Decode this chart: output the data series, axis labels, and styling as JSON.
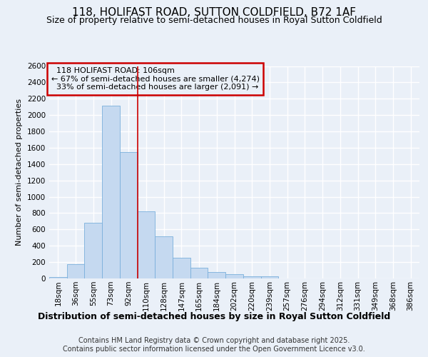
{
  "title1": "118, HOLIFAST ROAD, SUTTON COLDFIELD, B72 1AF",
  "title2": "Size of property relative to semi-detached houses in Royal Sutton Coldfield",
  "xlabel": "Distribution of semi-detached houses by size in Royal Sutton Coldfield",
  "ylabel": "Number of semi-detached properties",
  "footer": "Contains HM Land Registry data © Crown copyright and database right 2025.\nContains public sector information licensed under the Open Government Licence v3.0.",
  "categories": [
    "18sqm",
    "36sqm",
    "55sqm",
    "73sqm",
    "92sqm",
    "110sqm",
    "128sqm",
    "147sqm",
    "165sqm",
    "184sqm",
    "202sqm",
    "220sqm",
    "239sqm",
    "257sqm",
    "276sqm",
    "294sqm",
    "312sqm",
    "331sqm",
    "349sqm",
    "368sqm",
    "386sqm"
  ],
  "values": [
    15,
    175,
    685,
    2115,
    1550,
    825,
    515,
    255,
    130,
    75,
    55,
    25,
    25,
    0,
    0,
    0,
    0,
    0,
    0,
    0,
    0
  ],
  "bar_color": "#c5d9f0",
  "bar_edge_color": "#7ab0dc",
  "property_label": "118 HOLIFAST ROAD: 106sqm",
  "pct_smaller": 67,
  "pct_larger": 33,
  "count_smaller": 4274,
  "count_larger": 2091,
  "vline_color": "#cc0000",
  "vline_index": 5,
  "annotation_box_color": "#cc0000",
  "ylim": [
    0,
    2600
  ],
  "yticks": [
    0,
    200,
    400,
    600,
    800,
    1000,
    1200,
    1400,
    1600,
    1800,
    2000,
    2200,
    2400,
    2600
  ],
  "bg_color": "#eaf0f8",
  "grid_color": "#ffffff",
  "title1_fontsize": 11,
  "title2_fontsize": 9,
  "ylabel_fontsize": 8,
  "xlabel_fontsize": 9,
  "footer_fontsize": 7,
  "annot_fontsize": 8,
  "tick_fontsize": 7.5
}
